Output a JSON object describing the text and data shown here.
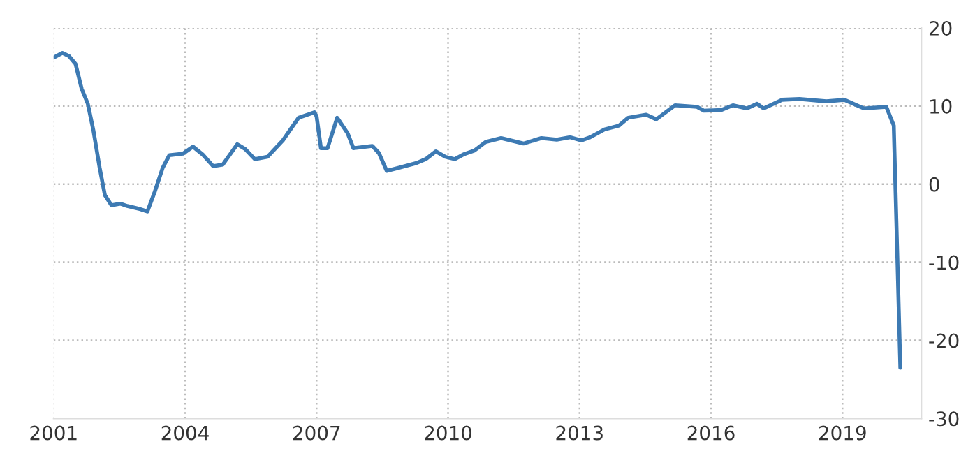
{
  "chart_data": {
    "type": "line",
    "x": [
      2001.0,
      2001.2,
      2001.35,
      2001.5,
      2001.64,
      2001.78,
      2001.91,
      2002.05,
      2002.17,
      2002.32,
      2002.52,
      2002.68,
      2002.98,
      2003.14,
      2003.3,
      2003.49,
      2003.64,
      2003.95,
      2004.18,
      2004.4,
      2004.64,
      2004.86,
      2005.19,
      2005.37,
      2005.59,
      2005.88,
      2006.23,
      2006.59,
      2006.95,
      2007.0,
      2007.1,
      2007.25,
      2007.47,
      2007.71,
      2007.84,
      2008.27,
      2008.42,
      2008.6,
      2008.88,
      2009.28,
      2009.49,
      2009.72,
      2009.94,
      2010.15,
      2010.35,
      2010.6,
      2010.86,
      2011.21,
      2011.72,
      2012.13,
      2012.48,
      2012.79,
      2013.04,
      2013.24,
      2013.57,
      2013.9,
      2014.11,
      2014.52,
      2014.75,
      2015.18,
      2015.68,
      2015.84,
      2016.24,
      2016.5,
      2016.82,
      2017.05,
      2017.2,
      2017.62,
      2018.02,
      2018.63,
      2019.04,
      2019.49,
      2020.0,
      2020.17,
      2020.32
    ],
    "series": [
      {
        "color": "#3d7ab3",
        "values": [
          16.2,
          16.8,
          16.4,
          15.4,
          12.2,
          10.3,
          6.8,
          2.1,
          -1.4,
          -2.7,
          -2.5,
          -2.8,
          -3.2,
          -3.5,
          -1.1,
          2.1,
          3.7,
          3.9,
          4.8,
          3.8,
          2.3,
          2.5,
          5.1,
          4.5,
          3.2,
          3.5,
          5.6,
          8.5,
          9.2,
          8.7,
          4.6,
          4.6,
          8.5,
          6.5,
          4.6,
          4.9,
          4.0,
          1.7,
          2.1,
          2.7,
          3.2,
          4.2,
          3.5,
          3.2,
          3.8,
          4.3,
          5.4,
          5.9,
          5.2,
          5.9,
          5.7,
          6.0,
          5.6,
          6.0,
          7.0,
          7.5,
          8.5,
          8.9,
          8.3,
          10.1,
          9.9,
          9.4,
          9.5,
          10.1,
          9.7,
          10.3,
          9.7,
          10.8,
          10.9,
          10.6,
          10.8,
          9.7,
          9.9,
          7.5,
          -23.5
        ]
      }
    ],
    "xlim": [
      2001,
      2020.8
    ],
    "xticks": [
      2001,
      2004,
      2007,
      2010,
      2013,
      2016,
      2019
    ],
    "ylim": [
      -30,
      20
    ],
    "yticks": [
      -30,
      -20,
      -10,
      0,
      10,
      20
    ],
    "grid": true,
    "line_style": "solid",
    "marker": "none"
  }
}
